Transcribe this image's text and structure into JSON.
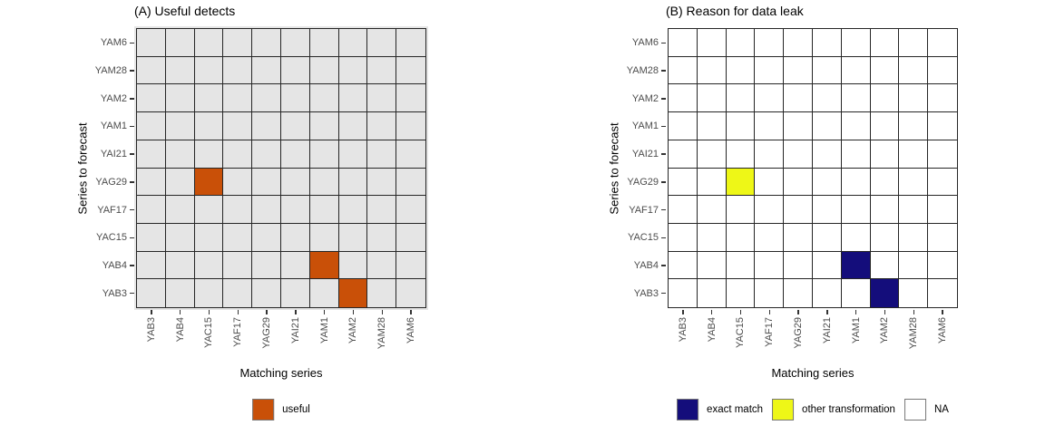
{
  "figure": {
    "background": "#FFFFFF",
    "grid_line_color": "#262626",
    "axis_text_color": "#4D4D4D",
    "tick_color": "#333333"
  },
  "chart_data": [
    {
      "type": "heatmap",
      "panel_tag": "A",
      "title": "(A) Useful detects",
      "xlabel": "Matching series",
      "ylabel": "Series to forecast",
      "x_categories": [
        "YAB3",
        "YAB4",
        "YAC15",
        "YAF17",
        "YAG29",
        "YAI21",
        "YAM1",
        "YAM2",
        "YAM28",
        "YAM6"
      ],
      "y_categories_top_to_bottom": [
        "YAM6",
        "YAM28",
        "YAM2",
        "YAM1",
        "YAI21",
        "YAG29",
        "YAF17",
        "YAC15",
        "YAB4",
        "YAB3"
      ],
      "cells": [
        {
          "x": "YAC15",
          "y": "YAG29",
          "value": "useful"
        },
        {
          "x": "YAM1",
          "y": "YAB4",
          "value": "useful"
        },
        {
          "x": "YAM2",
          "y": "YAB3",
          "value": "useful"
        }
      ],
      "value_colors": {
        "useful": "#C95008"
      },
      "na_color": "#E5E5E5",
      "na_cross_lines": true,
      "panel_background": "#E5E5E5",
      "legend": [
        {
          "label": "useful",
          "color": "#C95008"
        }
      ]
    },
    {
      "type": "heatmap",
      "panel_tag": "B",
      "title": "(B) Reason for data leak",
      "xlabel": "Matching series",
      "ylabel": "Series to forecast",
      "x_categories": [
        "YAB3",
        "YAB4",
        "YAC15",
        "YAF17",
        "YAG29",
        "YAI21",
        "YAM1",
        "YAM2",
        "YAM28",
        "YAM6"
      ],
      "y_categories_top_to_bottom": [
        "YAM6",
        "YAM28",
        "YAM2",
        "YAM1",
        "YAI21",
        "YAG29",
        "YAF17",
        "YAC15",
        "YAB4",
        "YAB3"
      ],
      "cells": [
        {
          "x": "YAC15",
          "y": "YAG29",
          "value": "other transformation"
        },
        {
          "x": "YAM1",
          "y": "YAB4",
          "value": "exact match"
        },
        {
          "x": "YAM2",
          "y": "YAB3",
          "value": "exact match"
        }
      ],
      "value_colors": {
        "exact match": "#140D7B",
        "other transformation": "#EEF717"
      },
      "na_color": "#FFFFFF",
      "na_cross_lines": false,
      "panel_background": "#FFFFFF",
      "legend": [
        {
          "label": "exact match",
          "color": "#140D7B"
        },
        {
          "label": "other transformation",
          "color": "#EEF717"
        },
        {
          "label": "NA",
          "color": "#FFFFFF"
        }
      ]
    }
  ]
}
